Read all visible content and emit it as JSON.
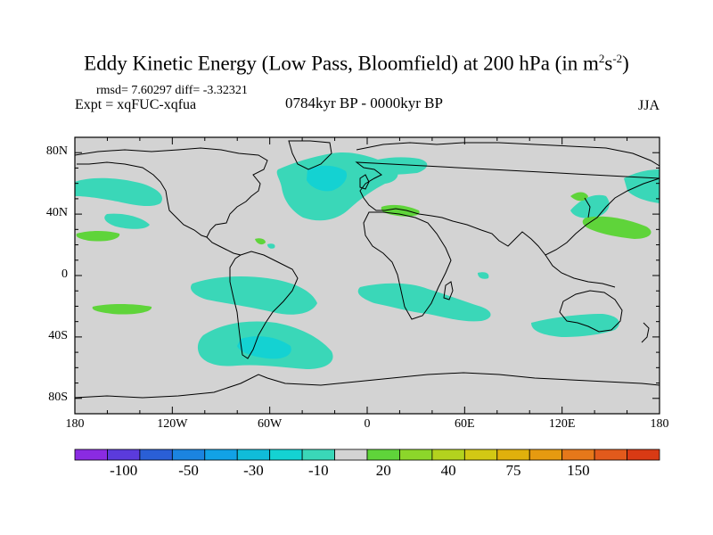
{
  "figure": {
    "title": "Eddy Kinetic Energy (Low Pass, Bloomfield) at 200 hPa (in m",
    "title_unit_sup1": "2",
    "title_unit_mid": "s",
    "title_unit_sup2": "-2",
    "title_close": ")",
    "stats": "rmsd= 7.60297 diff= -3.32321",
    "experiment": "Expt = xqFUC-xqfua",
    "period": "0784kyr BP - 0000kyr BP",
    "season": "JJA"
  },
  "map": {
    "projection": "cylindrical-equidistant",
    "lon_range": [
      -180,
      180
    ],
    "lat_range": [
      -90,
      90
    ],
    "background_color": "#d3d3d3",
    "coastline_color": "#000000",
    "lat_ticks": [
      {
        "value": 80,
        "label": "80N"
      },
      {
        "value": 40,
        "label": "40N"
      },
      {
        "value": 0,
        "label": "0"
      },
      {
        "value": -40,
        "label": "40S"
      },
      {
        "value": -80,
        "label": "80S"
      }
    ],
    "lon_ticks": [
      {
        "value": -180,
        "label": "180"
      },
      {
        "value": -120,
        "label": "120W"
      },
      {
        "value": -60,
        "label": "60W"
      },
      {
        "value": 0,
        "label": "0"
      },
      {
        "value": 60,
        "label": "60E"
      },
      {
        "value": 120,
        "label": "120E"
      },
      {
        "value": 180,
        "label": "180"
      }
    ]
  },
  "colorbar": {
    "colors": [
      "#8a2be2",
      "#5b3bdc",
      "#2a5fd6",
      "#1b84e0",
      "#12a2e6",
      "#10bcd9",
      "#14d2d2",
      "#3ad7b8",
      "#d3d3d3",
      "#5fd43a",
      "#8cd62a",
      "#b3d21e",
      "#d2c814",
      "#e0b00c",
      "#e69a10",
      "#e6781a",
      "#e25a1c",
      "#d93a14"
    ],
    "ticks": [
      {
        "boundary": 1,
        "label": "-100"
      },
      {
        "boundary": 3,
        "label": "-50"
      },
      {
        "boundary": 5,
        "label": "-30"
      },
      {
        "boundary": 7,
        "label": "-10"
      },
      {
        "boundary": 9,
        "label": "20"
      },
      {
        "boundary": 11,
        "label": "40"
      },
      {
        "boundary": 13,
        "label": "75"
      },
      {
        "boundary": 15,
        "label": "150"
      }
    ]
  }
}
